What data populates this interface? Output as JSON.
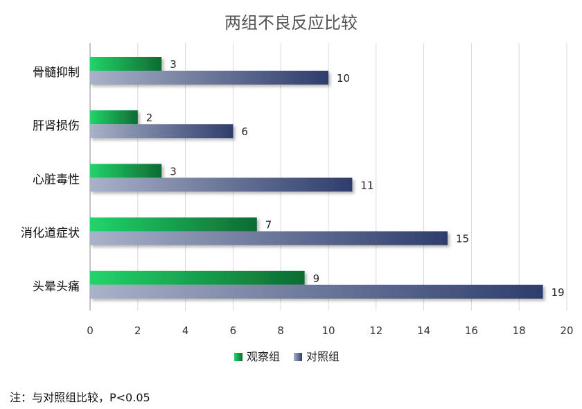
{
  "chart_data": {
    "type": "bar",
    "orientation": "horizontal",
    "title": "两组不良反应比较",
    "categories": [
      "骨髓抑制",
      "肝肾损伤",
      "心脏毒性",
      "消化道症状",
      "头晕头痛"
    ],
    "series": [
      {
        "name": "观察组",
        "values": [
          3,
          2,
          3,
          7,
          9
        ],
        "color": "#1aa64a"
      },
      {
        "name": "对照组",
        "values": [
          10,
          6,
          11,
          15,
          19
        ],
        "color": "#3d4d78"
      }
    ],
    "xlim": [
      0,
      20
    ],
    "xticks": [
      0,
      2,
      4,
      6,
      8,
      10,
      12,
      14,
      16,
      18,
      20
    ],
    "grid": true,
    "legend": "bottom"
  },
  "note": "注：与对照组比较，P<0.05"
}
